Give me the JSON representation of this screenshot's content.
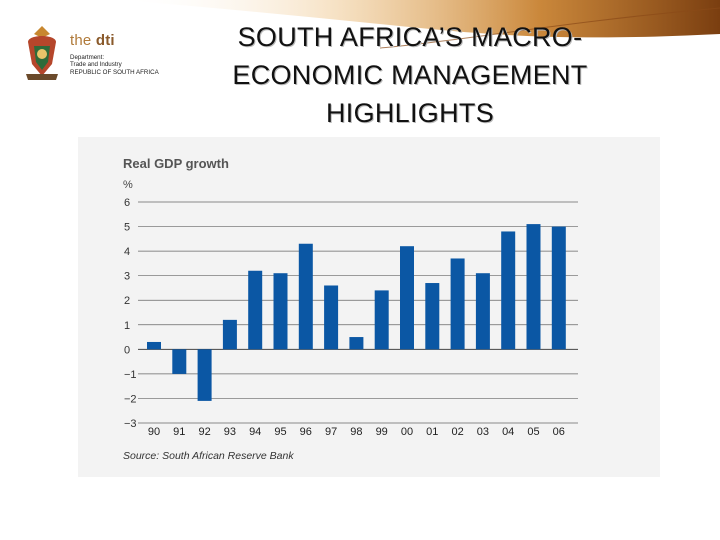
{
  "header": {
    "title_line1": "SOUTH AFRICA’S MACRO-",
    "title_line2": "ECONOMIC MANAGEMENT",
    "title_line3": "HIGHLIGHTS"
  },
  "logo": {
    "brand_the": "the",
    "brand_dti": "dti",
    "line1": "Department:",
    "line2": "Trade and Industry",
    "line3": "REPUBLIC OF SOUTH AFRICA"
  },
  "colors": {
    "bar": "#0b57a4",
    "brand": "#8a5a2b",
    "swoosh": "#c8872f"
  },
  "chart_data": {
    "type": "bar",
    "title": "Real GDP growth",
    "ylabel": "%",
    "categories": [
      "90",
      "91",
      "92",
      "93",
      "94",
      "95",
      "96",
      "97",
      "98",
      "99",
      "00",
      "01",
      "02",
      "03",
      "04",
      "05",
      "06"
    ],
    "values": [
      0.3,
      -1.0,
      -2.1,
      1.2,
      3.2,
      3.1,
      4.3,
      2.6,
      0.5,
      2.4,
      4.2,
      2.7,
      3.7,
      3.1,
      4.8,
      5.1,
      5.0
    ],
    "yticks": [
      "6",
      "5",
      "4",
      "3",
      "2",
      "1",
      "0",
      "−1",
      "−2",
      "−3"
    ],
    "ylim": [
      -3,
      6
    ],
    "source": "Source: South African Reserve Bank"
  }
}
